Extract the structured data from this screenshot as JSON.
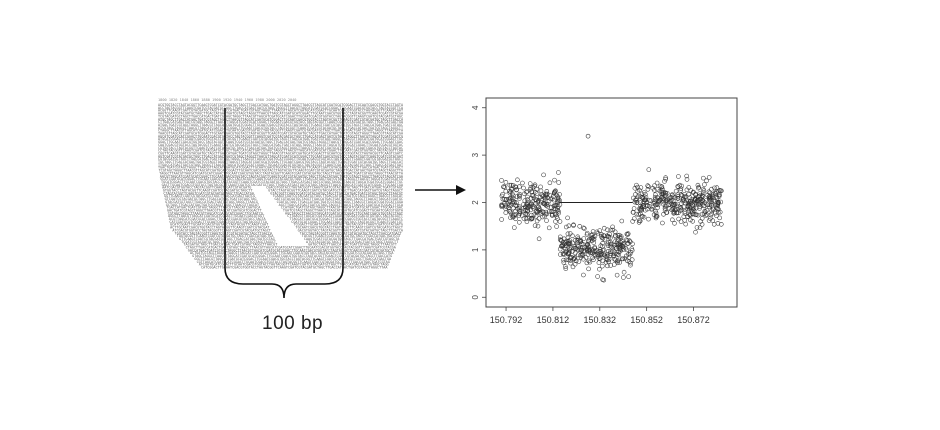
{
  "alignment_block": {
    "read_text": "ACGTGGTACCTAGTACGGTTCAAGTCGATCGTACGATGCTAGCTTGACCATGACTGATCGTAGCTAGGCTTAACGTTAGCATCGATGCATCGGACTTGCAATCG"
  },
  "bracket_label": "100 bp",
  "arrow": {
    "name": "transform-arrow"
  },
  "chart_data": {
    "type": "scatter",
    "x_ticks": [
      "150.792",
      "150.812",
      "150.832",
      "150.852",
      "150.872"
    ],
    "y_ticks": [
      "0",
      "1",
      "2",
      "3",
      "4"
    ],
    "xlim": [
      150.786,
      150.888
    ],
    "ylim": [
      -0.1,
      4.1
    ],
    "segments": [
      {
        "x_start": 150.79,
        "x_end": 150.806,
        "level": 2.0
      },
      {
        "x_start": 150.806,
        "x_end": 150.815,
        "level": 2.0
      },
      {
        "x_start": 150.815,
        "x_end": 150.846,
        "level": 1.0
      },
      {
        "x_start": 150.846,
        "x_end": 150.884,
        "level": 2.0
      }
    ],
    "segment_line": {
      "x_start": 150.815,
      "x_end": 150.846,
      "level": 2.0
    },
    "points_per_unit": 16,
    "outliers": [
      {
        "x": 150.827,
        "y": 3.4
      }
    ],
    "marker": "open-circle"
  }
}
